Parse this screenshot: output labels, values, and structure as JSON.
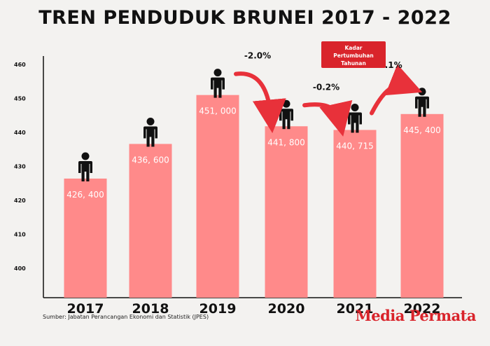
{
  "chart_data": {
    "type": "bar",
    "title": "TREN PENDUDUK BRUNEI 2017 - 2022",
    "categories": [
      "2017",
      "2018",
      "2019",
      "2020",
      "2021",
      "2022"
    ],
    "values": [
      426400,
      436600,
      451000,
      441800,
      440715,
      445400
    ],
    "value_labels": [
      "426, 400",
      "436, 600",
      "451, 000",
      "441, 800",
      "440, 715",
      "445, 400"
    ],
    "y_ticks": [
      "460",
      "450",
      "440",
      "430",
      "420",
      "410",
      "400"
    ],
    "growth_annotations": [
      {
        "from": "2019",
        "to": "2020",
        "label": "-2.0%"
      },
      {
        "from": "2020",
        "to": "2021",
        "label": "-0.2%"
      },
      {
        "from": "2021",
        "to": "2022",
        "label": "1.1%"
      }
    ],
    "legend": [
      "Kadar",
      "Pertumbuhan",
      "Tahunan"
    ],
    "grid": false,
    "colors": {
      "bar": "#ff8a8a",
      "arrow": "#e8313a",
      "axis": "#111111",
      "person": "#111111"
    }
  },
  "source": "Sumber: Jabatan Perancangan Ekonomi dan Statistik (JPES)",
  "brand": "Media Permata"
}
